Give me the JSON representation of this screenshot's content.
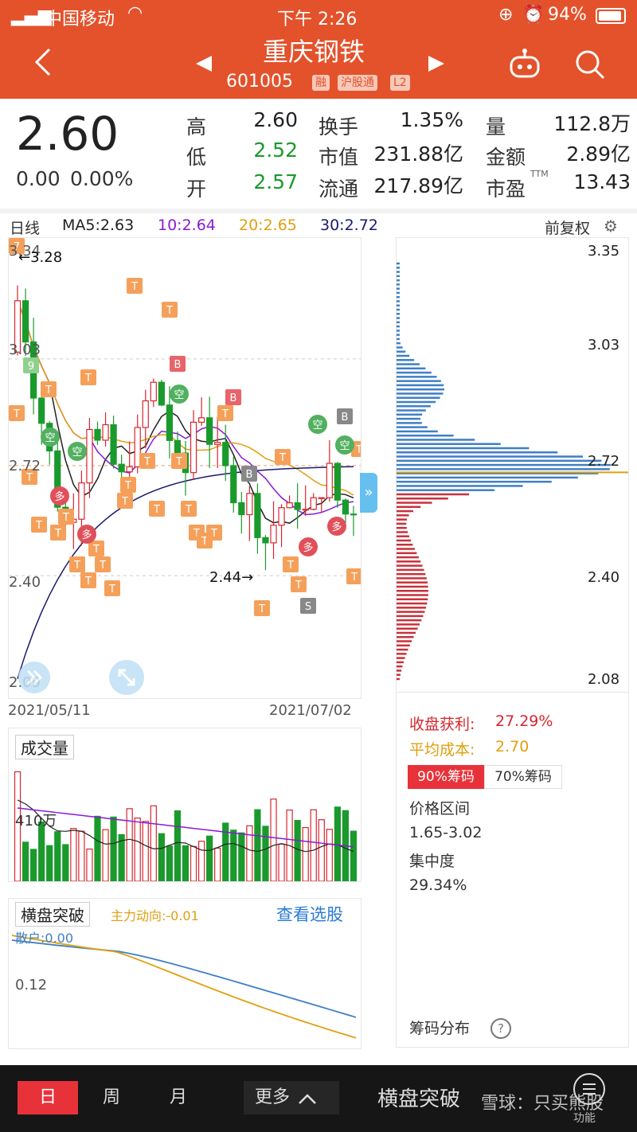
{
  "status_bar": {
    "carrier": "中国移动",
    "time": "下午 2:26",
    "battery": "94%"
  },
  "header": {
    "title": "重庆钢铁",
    "code": "601005",
    "tags": [
      "融",
      "沪股通",
      "L2"
    ],
    "prev_icon": "triangle-left-icon",
    "next_icon": "triangle-right-icon"
  },
  "quote": {
    "price": "2.60",
    "change": "0.00",
    "change_pct": "0.00%",
    "stats": [
      {
        "label": "高",
        "value": "2.60"
      },
      {
        "label": "换手",
        "value": "1.35%"
      },
      {
        "label": "量",
        "value": "112.8万"
      },
      {
        "label": "低",
        "value": "2.52"
      },
      {
        "label": "市值",
        "value": "231.88亿"
      },
      {
        "label": "金额",
        "value": "2.89亿"
      },
      {
        "label": "开",
        "value": "2.57"
      },
      {
        "label": "流通",
        "value": "217.89亿"
      },
      {
        "label": "市盈",
        "value": "13.43"
      }
    ],
    "ttm": "TTM"
  },
  "ma_legend": {
    "period": "日线",
    "ma5": "MA5:2.63",
    "ma10": "10:2.64",
    "ma20": "20:2.65",
    "ma30": "30:2.72",
    "adjust": "前复权"
  },
  "kline": {
    "price_labels": [
      "3.34",
      "3.03",
      "2.72",
      "2.40",
      "2.09"
    ],
    "high_annotation": "←3.28",
    "low_annotation": "2.44→",
    "start_date": "2021/05/11",
    "end_date": "2021/07/02",
    "marker_texts": {
      "t": "T",
      "b": "B",
      "s": "S",
      "kong": "空",
      "duo": "多",
      "nine": "9",
      "seven": "7"
    }
  },
  "chip": {
    "price_labels": [
      "3.35",
      "3.03",
      "2.72",
      "2.40",
      "2.08"
    ],
    "profit_label": "收盘获利:",
    "profit_value": "27.29%",
    "avg_cost_label": "平均成本:",
    "avg_cost_value": "2.70",
    "tab_90": "90%筹码",
    "tab_70": "70%筹码",
    "range_label": "价格区间",
    "range_value": "1.65-3.02",
    "concentration_label": "集中度",
    "concentration_value": "29.34%",
    "footer": "筹码分布"
  },
  "volume": {
    "title": "成交量",
    "level_label": "410万"
  },
  "indicator": {
    "title": "横盘突破",
    "main_force": "主力动向:-0.01",
    "link": "查看选股",
    "retail": "散户:0.00",
    "level": "0.12"
  },
  "tabbar": {
    "tabs": [
      "日",
      "周",
      "月",
      "更多"
    ],
    "indicator_name": "横盘突破",
    "watermark": "雪球：只买熊股",
    "menu_label": "功能"
  },
  "colors": {
    "brand": "#e3522b",
    "up": "#d7262e",
    "down": "#1a9a2c",
    "ma5": "#222222",
    "ma10": "#8a1bd6",
    "ma20": "#e0a010",
    "ma30": "#1a1a6e",
    "chip_upper": "#3f7fc6",
    "chip_lower": "#c9303a"
  }
}
